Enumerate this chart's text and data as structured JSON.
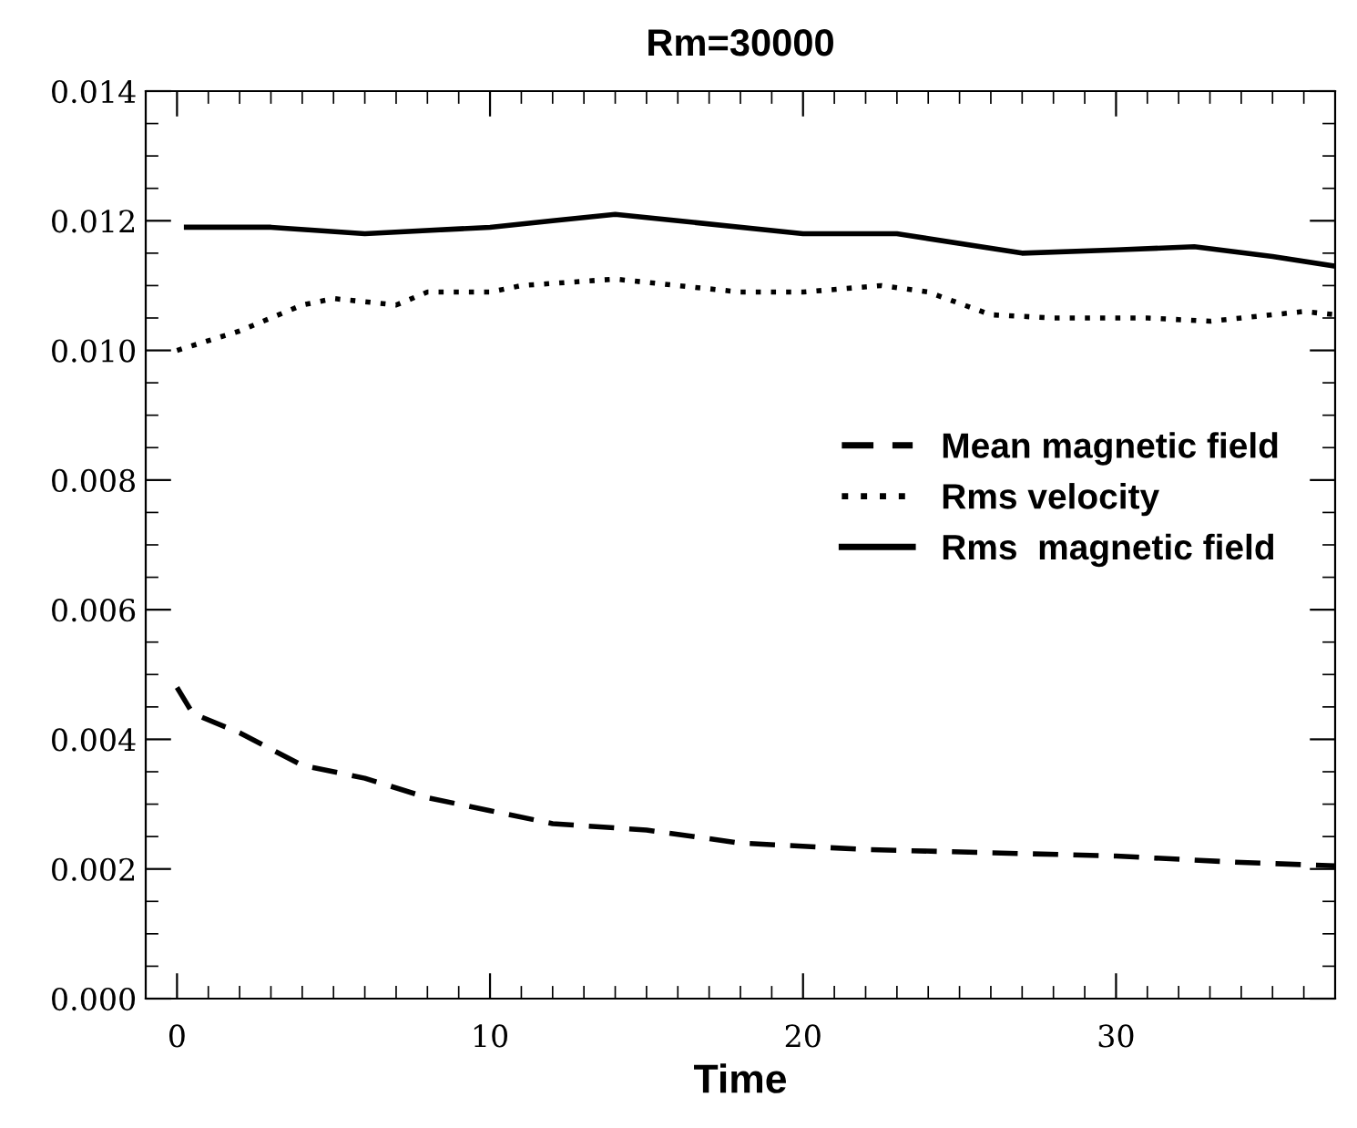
{
  "chart_data": {
    "type": "line",
    "title": "Rm=30000",
    "xlabel": "Time",
    "xlim": [
      -1,
      37
    ],
    "xticks": [
      0,
      10,
      20,
      30
    ],
    "ylim": [
      0,
      0.014
    ],
    "yticks": [
      {
        "value": 0,
        "label": "0.000"
      },
      {
        "value": 0.002,
        "label": "0.002"
      },
      {
        "value": 0.004,
        "label": "0.004"
      },
      {
        "value": 0.006,
        "label": "0.006"
      },
      {
        "value": 0.008,
        "label": "0.008"
      },
      {
        "value": 0.01,
        "label": "0.010"
      },
      {
        "value": 0.012,
        "label": "0.012"
      },
      {
        "value": 0.014,
        "label": "0.014"
      }
    ],
    "grid": false,
    "legend": "right",
    "marker": "none",
    "series": [
      {
        "name": "Mean magnetic field",
        "color": "#000000",
        "line_style": "dashed",
        "x": [
          0,
          0.5,
          2,
          4,
          6,
          8,
          10,
          12,
          15,
          18,
          22,
          26,
          30,
          34,
          37
        ],
        "values": [
          0.0048,
          0.0044,
          0.0041,
          0.0036,
          0.0034,
          0.0031,
          0.0029,
          0.0027,
          0.0026,
          0.0024,
          0.0023,
          0.00225,
          0.0022,
          0.0021,
          0.00205
        ]
      },
      {
        "name": "Rms velocity",
        "color": "#000000",
        "line_style": "dotted",
        "x": [
          0,
          2,
          4,
          5,
          7,
          8,
          10,
          11,
          14,
          16,
          18,
          20,
          22.5,
          24,
          26,
          28,
          31,
          33,
          36,
          37
        ],
        "values": [
          0.01,
          0.0103,
          0.0107,
          0.0108,
          0.0107,
          0.0109,
          0.0109,
          0.011,
          0.0111,
          0.011,
          0.0109,
          0.0109,
          0.011,
          0.0109,
          0.01055,
          0.0105,
          0.0105,
          0.01045,
          0.0106,
          0.01055
        ]
      },
      {
        "name": "Rms  magnetic field",
        "color": "#000000",
        "line_style": "solid",
        "x": [
          0.3,
          3,
          6,
          10,
          12,
          14,
          16,
          20,
          23,
          27,
          30,
          32.5,
          35,
          37
        ],
        "values": [
          0.0119,
          0.0119,
          0.0118,
          0.0119,
          0.012,
          0.0121,
          0.012,
          0.0118,
          0.0118,
          0.0115,
          0.01155,
          0.0116,
          0.01145,
          0.0113
        ]
      }
    ]
  }
}
